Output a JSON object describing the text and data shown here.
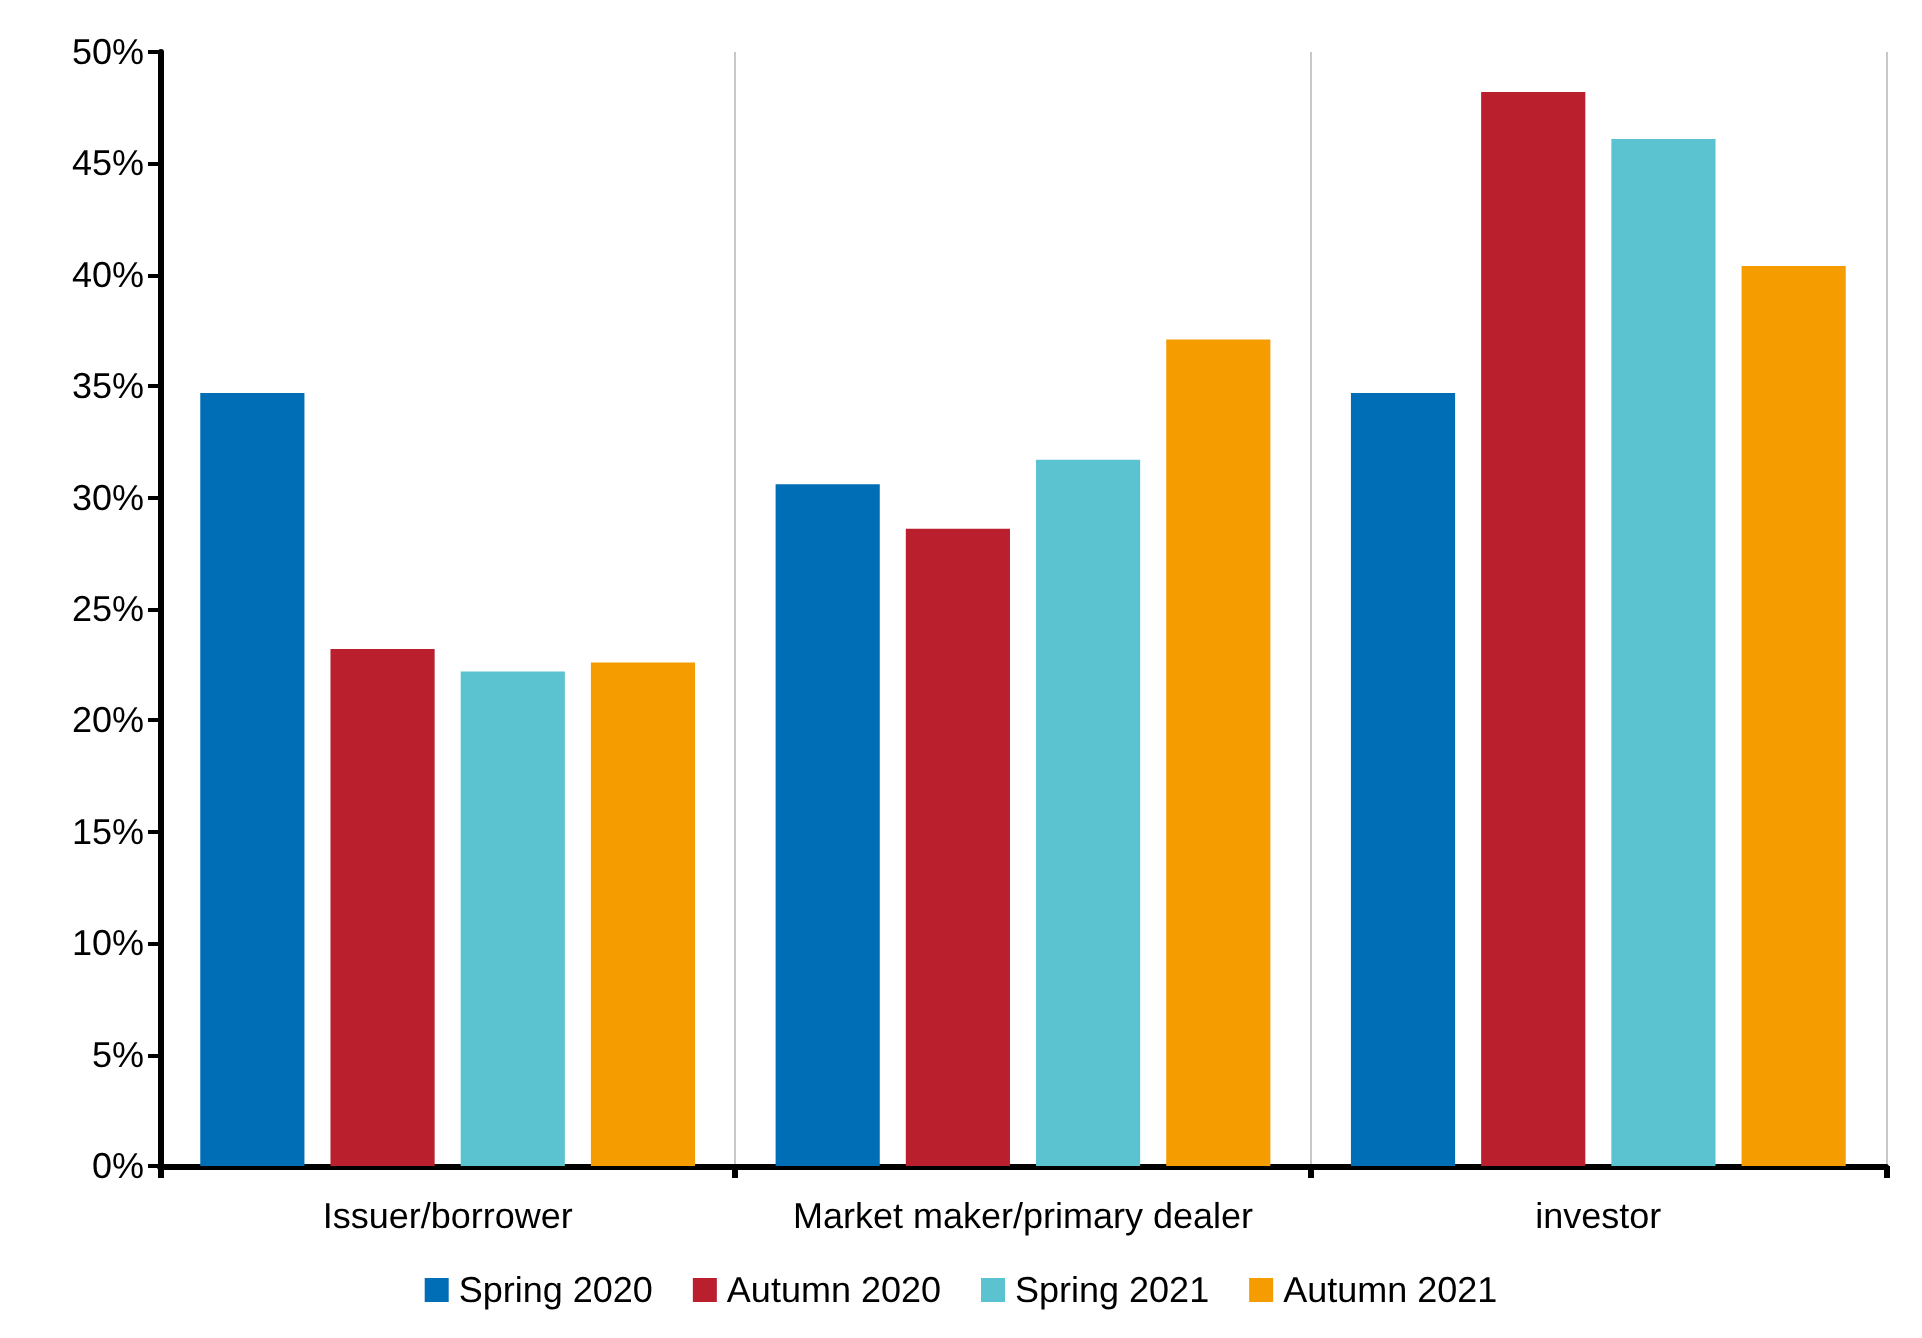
{
  "chart_data": {
    "type": "bar",
    "categories": [
      "Issuer/borrower",
      "Market maker/primary dealer",
      "investor"
    ],
    "series": [
      {
        "name": "Spring 2020",
        "color": "#006eb6",
        "values": [
          34.7,
          30.6,
          34.7
        ]
      },
      {
        "name": "Autumn 2020",
        "color": "#ba1f2d",
        "values": [
          23.2,
          28.6,
          48.2
        ]
      },
      {
        "name": "Spring 2021",
        "color": "#5bc2d0",
        "values": [
          22.2,
          31.7,
          46.1
        ]
      },
      {
        "name": "Autumn 2021",
        "color": "#f59c00",
        "values": [
          22.6,
          37.1,
          40.4
        ]
      }
    ],
    "ylim": [
      0,
      50
    ],
    "yticks": [
      {
        "value": 0,
        "label": "0%"
      },
      {
        "value": 5,
        "label": "5%"
      },
      {
        "value": 10,
        "label": "10%"
      },
      {
        "value": 15,
        "label": "15%"
      },
      {
        "value": 20,
        "label": "20%"
      },
      {
        "value": 25,
        "label": "25%"
      },
      {
        "value": 30,
        "label": "30%"
      },
      {
        "value": 35,
        "label": "35%"
      },
      {
        "value": 40,
        "label": "40%"
      },
      {
        "value": 45,
        "label": "45%"
      },
      {
        "value": 50,
        "label": "50%"
      }
    ],
    "grid": "x",
    "legend": "bottom"
  }
}
